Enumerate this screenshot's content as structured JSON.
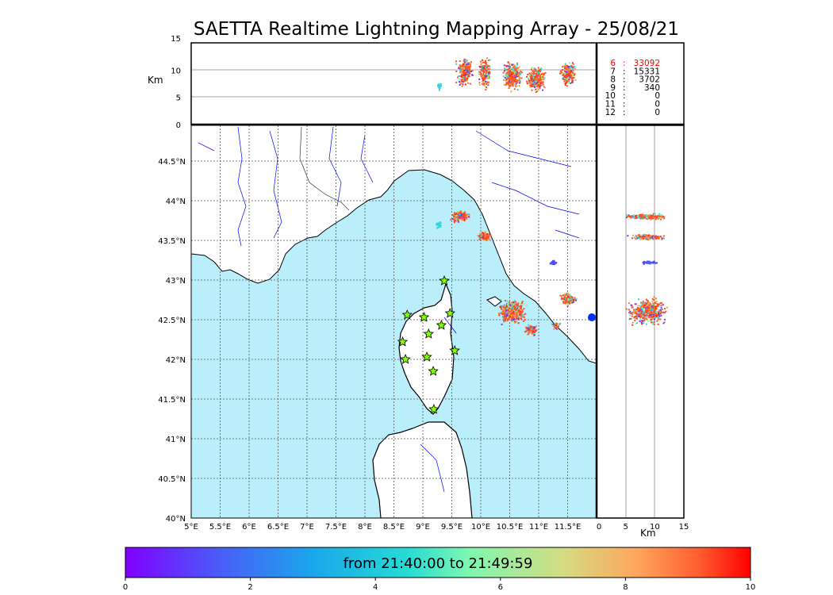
{
  "title": "SAETTA Realtime Lightning Mapping Array - 25/08/21",
  "unit_km": "Km",
  "height_panel": {
    "y_ticks": [
      "15",
      "10",
      "5",
      "0"
    ],
    "y_values": [
      15,
      10,
      5,
      0
    ]
  },
  "side_panel": {
    "x_ticks": [
      "0",
      "5",
      "10",
      "15"
    ],
    "x_values": [
      0,
      5,
      10,
      15
    ]
  },
  "map": {
    "lon_ticks": [
      "5°E",
      "5.5°E",
      "6°E",
      "6.5°E",
      "7°E",
      "7.5°E",
      "8°E",
      "8.5°E",
      "9°E",
      "9.5°E",
      "10°E",
      "10.5°E",
      "11°E",
      "11.5°E"
    ],
    "lon_values": [
      5,
      5.5,
      6,
      6.5,
      7,
      7.5,
      8,
      8.5,
      9,
      9.5,
      10,
      10.5,
      11,
      11.5
    ],
    "lat_ticks": [
      "44.5°N",
      "44°N",
      "43.5°N",
      "43°N",
      "42.5°N",
      "42°N",
      "41.5°N",
      "41°N",
      "40.5°N",
      "40°N"
    ],
    "lat_values": [
      44.5,
      44,
      43.5,
      43,
      42.5,
      42,
      41.5,
      41,
      40.5,
      40
    ],
    "lon_range": [
      5,
      12
    ],
    "lat_range": [
      40,
      44.95
    ],
    "sea_color": "#b9eefa",
    "land_color": "#ffffff",
    "river_color": "#0000ff",
    "grid": true
  },
  "stations": [
    {
      "lon": 9.37,
      "lat": 42.99
    },
    {
      "lon": 8.73,
      "lat": 42.56
    },
    {
      "lon": 9.02,
      "lat": 42.53
    },
    {
      "lon": 9.47,
      "lat": 42.58
    },
    {
      "lon": 9.32,
      "lat": 42.43
    },
    {
      "lon": 9.1,
      "lat": 42.32
    },
    {
      "lon": 8.65,
      "lat": 42.22
    },
    {
      "lon": 9.55,
      "lat": 42.11
    },
    {
      "lon": 8.7,
      "lat": 42.0
    },
    {
      "lon": 9.07,
      "lat": 42.03
    },
    {
      "lon": 9.18,
      "lat": 41.85
    },
    {
      "lon": 9.19,
      "lat": 41.37
    }
  ],
  "station_symbol": "star",
  "station_color": "#7fff00",
  "altitude_counts": [
    {
      "alt": "6",
      "count": "33092",
      "color": "#ff0000"
    },
    {
      "alt": "7",
      "count": "15331",
      "color": "#000000"
    },
    {
      "alt": "8",
      "count": "3702",
      "color": "#000000"
    },
    {
      "alt": "9",
      "count": "340",
      "color": "#000000"
    },
    {
      "alt": "10",
      "count": "0",
      "color": "#000000"
    },
    {
      "alt": "11",
      "count": "0",
      "color": "#000000"
    },
    {
      "alt": "12",
      "count": "0",
      "color": "#000000"
    }
  ],
  "colorbar": {
    "label": "from 21:40:00 to 21:49:59",
    "ticks": [
      "0",
      "2",
      "4",
      "6",
      "8",
      "10"
    ],
    "tick_values": [
      0,
      2,
      4,
      6,
      8,
      10
    ],
    "range": [
      0,
      10
    ],
    "colormap": "rainbow"
  },
  "colors": {
    "dominant_flash": "#ff5020",
    "cyan": "#2fd4e0",
    "violet": "#5a40ff"
  }
}
